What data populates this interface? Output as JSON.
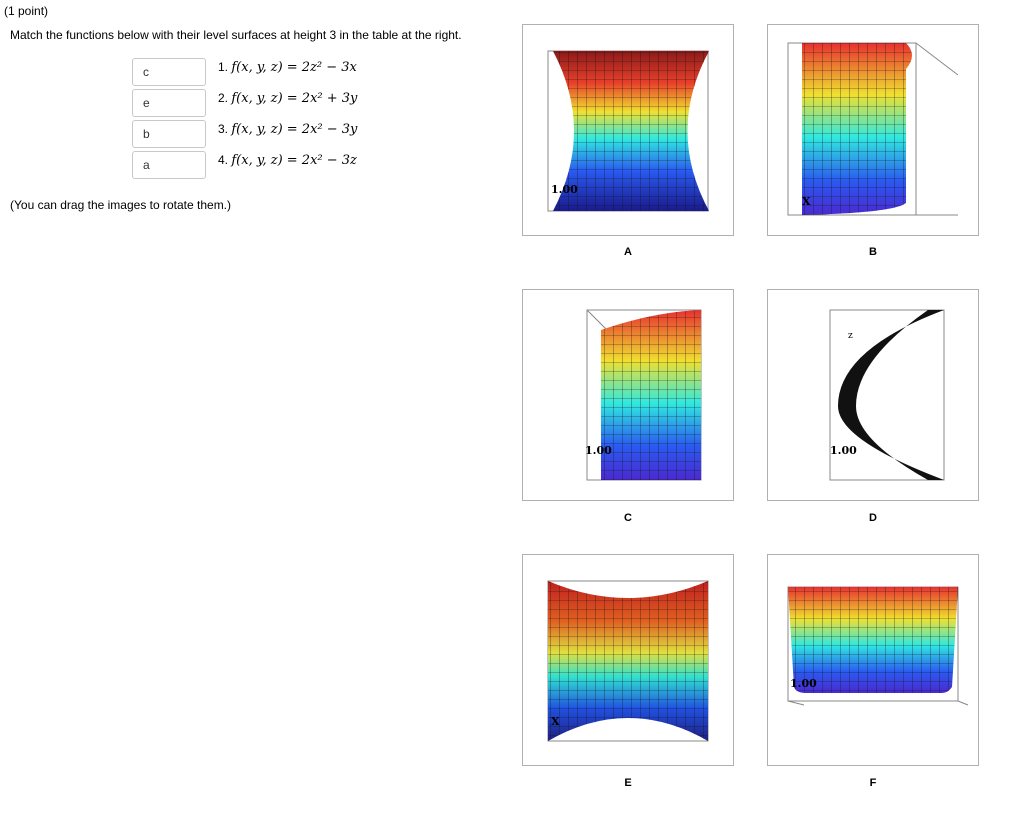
{
  "header": {
    "points": "(1 point)",
    "instructions": "Match the functions below with their level surfaces at height 3 in the table at the right.",
    "note": "(You can drag the images to rotate them.)"
  },
  "questions": [
    {
      "number": "1.",
      "expr": "f(x, y, z) = 2z² − 3x",
      "answer": "c"
    },
    {
      "number": "2.",
      "expr": "f(x, y, z) = 2x² + 3y",
      "answer": "e"
    },
    {
      "number": "3.",
      "expr": "f(x, y, z) = 2x² − 3y",
      "answer": "b"
    },
    {
      "number": "4.",
      "expr": "f(x, y, z) = 2x² − 3z",
      "answer": "a"
    }
  ],
  "panels": [
    {
      "label": "A"
    },
    {
      "label": "B"
    },
    {
      "label": "C"
    },
    {
      "label": "D"
    },
    {
      "label": "E"
    },
    {
      "label": "F"
    }
  ]
}
